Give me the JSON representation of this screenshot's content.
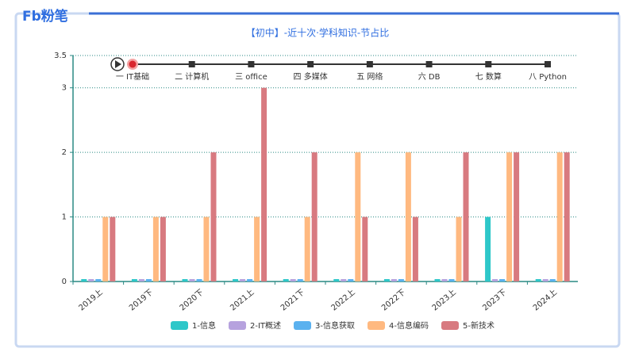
{
  "header": {
    "brand": "Fb粉笔"
  },
  "timeline": {
    "items": [
      "一 IT基础",
      "二 计算机",
      "三 office",
      "四 多媒体",
      "五 网络",
      "六 DB",
      "七 数算",
      "八 Python"
    ]
  },
  "chart_data": {
    "type": "bar",
    "title": "【初中】-近十次·学科知识-节占比",
    "categories": [
      "2019上",
      "2019下",
      "2020下",
      "2021上",
      "2021下",
      "2022上",
      "2022下",
      "2023上",
      "2023下",
      "2024上"
    ],
    "series": [
      {
        "name": "1-信息",
        "color": "#2ec7c9",
        "values": [
          0,
          0,
          0,
          0,
          0,
          0,
          0,
          0,
          1,
          0
        ]
      },
      {
        "name": "2-IT概述",
        "color": "#b6a2de",
        "values": [
          0,
          0,
          0,
          0,
          0,
          0,
          0,
          0,
          0,
          0
        ]
      },
      {
        "name": "3-信息获取",
        "color": "#5ab1ef",
        "values": [
          0,
          0,
          0,
          0,
          0,
          0,
          0,
          0,
          0,
          0
        ]
      },
      {
        "name": "4-信息编码",
        "color": "#ffb980",
        "values": [
          1,
          1,
          1,
          1,
          1,
          2,
          2,
          1,
          2,
          2
        ]
      },
      {
        "name": "5-新技术",
        "color": "#d87a80",
        "values": [
          1,
          1,
          2,
          3,
          2,
          1,
          1,
          2,
          2,
          2
        ]
      }
    ],
    "ylim": [
      0,
      3.5
    ],
    "yticks": [
      0,
      1,
      2,
      3,
      3.5
    ],
    "grid": true
  }
}
